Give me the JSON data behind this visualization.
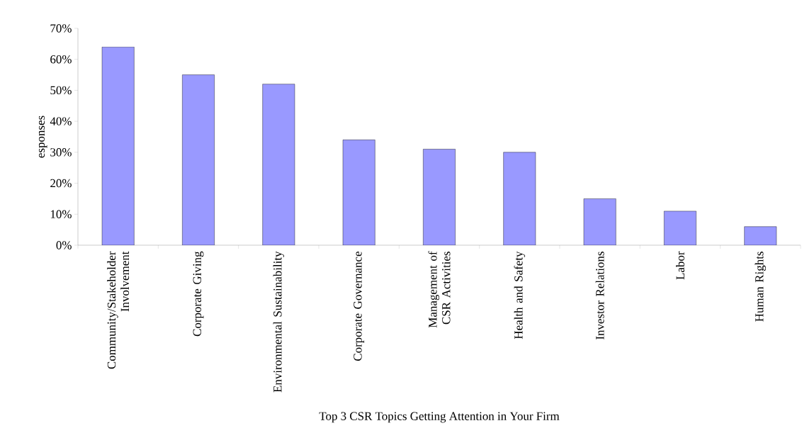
{
  "chart_data": {
    "type": "bar",
    "xlabel": "Top 3 CSR Topics Getting Attention in Your Firm",
    "ylabel": "esponses",
    "categories": [
      "Community/Stakeholder Involvement",
      "Corporate Giving",
      "Environmental Sustainability",
      "Corporate Governance",
      "Management of CSR Activities",
      "Health and Safety",
      "Investor Relations",
      "Labor",
      "Human Rights"
    ],
    "values": [
      64,
      55,
      52,
      34,
      31,
      30,
      15,
      11,
      6
    ],
    "color": "#9999ff",
    "ylim": [
      0,
      70
    ],
    "yticks": [
      {
        "value": 0,
        "label": "0%"
      },
      {
        "value": 10,
        "label": "10%"
      },
      {
        "value": 20,
        "label": "20%"
      },
      {
        "value": 30,
        "label": "30%"
      },
      {
        "value": 40,
        "label": "40%"
      },
      {
        "value": 50,
        "label": "50%"
      },
      {
        "value": 60,
        "label": "60%"
      },
      {
        "value": 70,
        "label": "70%"
      }
    ],
    "grid": false
  }
}
